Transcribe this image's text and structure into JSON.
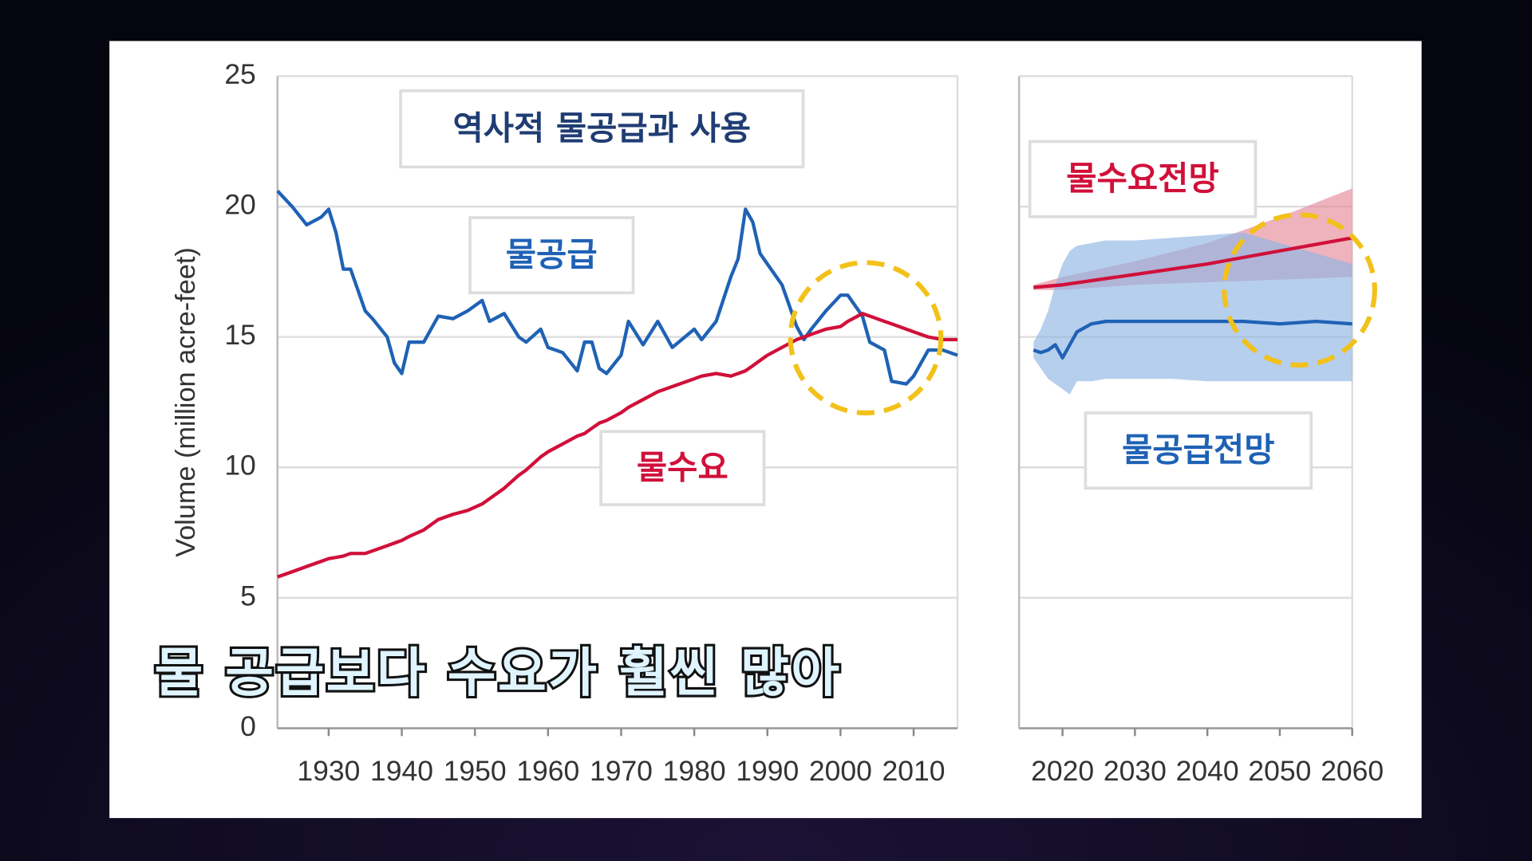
{
  "chart_data": [
    {
      "type": "line",
      "title": "역사적 물공급과 사용",
      "y_label": "Volume (million acre-feet)",
      "annotations": [
        "물공급",
        "물수요"
      ],
      "x": [
        1923,
        1925,
        1927,
        1929,
        1930,
        1931,
        1932,
        1933,
        1935,
        1936,
        1938,
        1939,
        1940,
        1941,
        1943,
        1945,
        1947,
        1949,
        1951,
        1952,
        1954,
        1956,
        1957,
        1959,
        1960,
        1962,
        1964,
        1965,
        1966,
        1967,
        1968,
        1970,
        1971,
        1973,
        1975,
        1977,
        1980,
        1981,
        1983,
        1985,
        1986,
        1987,
        1988,
        1989,
        1990,
        1992,
        1994,
        1995,
        1996,
        1998,
        2000,
        2001,
        2003,
        2004,
        2006,
        2007,
        2009,
        2010,
        2012,
        2014,
        2016
      ],
      "series": [
        {
          "color": "#1f62b5",
          "values": [
            20.6,
            20.0,
            19.3,
            19.6,
            19.9,
            19.0,
            17.6,
            17.6,
            16.0,
            15.7,
            15.0,
            14.0,
            13.6,
            14.8,
            14.8,
            15.8,
            15.7,
            16.0,
            16.4,
            15.6,
            15.9,
            15.0,
            14.8,
            15.3,
            14.6,
            14.4,
            13.7,
            14.8,
            14.8,
            13.8,
            13.6,
            14.3,
            15.6,
            14.7,
            15.6,
            14.6,
            15.3,
            14.9,
            15.6,
            17.3,
            18.0,
            19.9,
            19.4,
            18.2,
            17.8,
            17.0,
            15.4,
            14.9,
            15.3,
            16.0,
            16.6,
            16.6,
            15.8,
            14.8,
            14.5,
            13.3,
            13.2,
            13.5,
            14.5,
            14.5,
            14.3
          ]
        },
        {
          "color": "#d0103a",
          "values": [
            5.8,
            6.0,
            6.2,
            6.4,
            6.5,
            6.55,
            6.6,
            6.7,
            6.7,
            6.8,
            7.0,
            7.1,
            7.2,
            7.35,
            7.6,
            8.0,
            8.2,
            8.35,
            8.6,
            8.8,
            9.2,
            9.7,
            9.9,
            10.4,
            10.6,
            10.9,
            11.2,
            11.3,
            11.5,
            11.7,
            11.8,
            12.1,
            12.3,
            12.6,
            12.9,
            13.1,
            13.4,
            13.5,
            13.6,
            13.5,
            13.6,
            13.7,
            13.9,
            14.1,
            14.3,
            14.6,
            14.9,
            15.0,
            15.1,
            15.3,
            15.4,
            15.6,
            15.9,
            15.8,
            15.6,
            15.5,
            15.3,
            15.2,
            15.0,
            14.9,
            14.9
          ]
        }
      ],
      "xlim": [
        1923,
        2016
      ],
      "xticks": [
        1930,
        1940,
        1950,
        1960,
        1970,
        1980,
        1990,
        2000,
        2010
      ],
      "ylim": [
        0,
        25
      ],
      "yticks": [
        0,
        5,
        10,
        15,
        20,
        25
      ],
      "grid": true
    },
    {
      "type": "band",
      "annotations": [
        "물수요전망",
        "물공급전망"
      ],
      "series": [
        {
          "color": "#d0103a",
          "band_color": "#e58a9a",
          "x": [
            2016,
            2020,
            2030,
            2040,
            2050,
            2060
          ],
          "values": [
            16.9,
            17.0,
            17.4,
            17.8,
            18.3,
            18.8
          ],
          "upper": [
            17.0,
            17.3,
            17.9,
            18.6,
            19.6,
            20.7
          ],
          "lower": [
            16.8,
            16.8,
            17.0,
            17.1,
            17.2,
            17.3
          ]
        },
        {
          "color": "#1f62b5",
          "band_color": "#8fb5e3",
          "x": [
            2016,
            2017,
            2018,
            2019,
            2020,
            2021,
            2022,
            2024,
            2026,
            2030,
            2035,
            2040,
            2045,
            2050,
            2055,
            2060
          ],
          "values": [
            14.5,
            14.4,
            14.5,
            14.7,
            14.2,
            14.7,
            15.2,
            15.5,
            15.6,
            15.6,
            15.6,
            15.6,
            15.6,
            15.5,
            15.6,
            15.5
          ],
          "upper": [
            14.8,
            15.3,
            16.0,
            17.0,
            17.8,
            18.3,
            18.5,
            18.6,
            18.7,
            18.7,
            18.8,
            18.9,
            19.0,
            18.6,
            18.2,
            17.8
          ],
          "lower": [
            14.2,
            13.8,
            13.4,
            13.2,
            13.0,
            12.8,
            13.3,
            13.3,
            13.4,
            13.4,
            13.4,
            13.3,
            13.3,
            13.3,
            13.3,
            13.3
          ]
        }
      ],
      "xlim": [
        2014,
        2060
      ],
      "xticks": [
        2020,
        2030,
        2040,
        2050,
        2060
      ],
      "ylim": [
        0,
        25
      ],
      "yticks": [
        0,
        5,
        10,
        15,
        20,
        25
      ],
      "grid": true
    }
  ],
  "caption": "물 공급보다 수요가 훨씬 많아"
}
